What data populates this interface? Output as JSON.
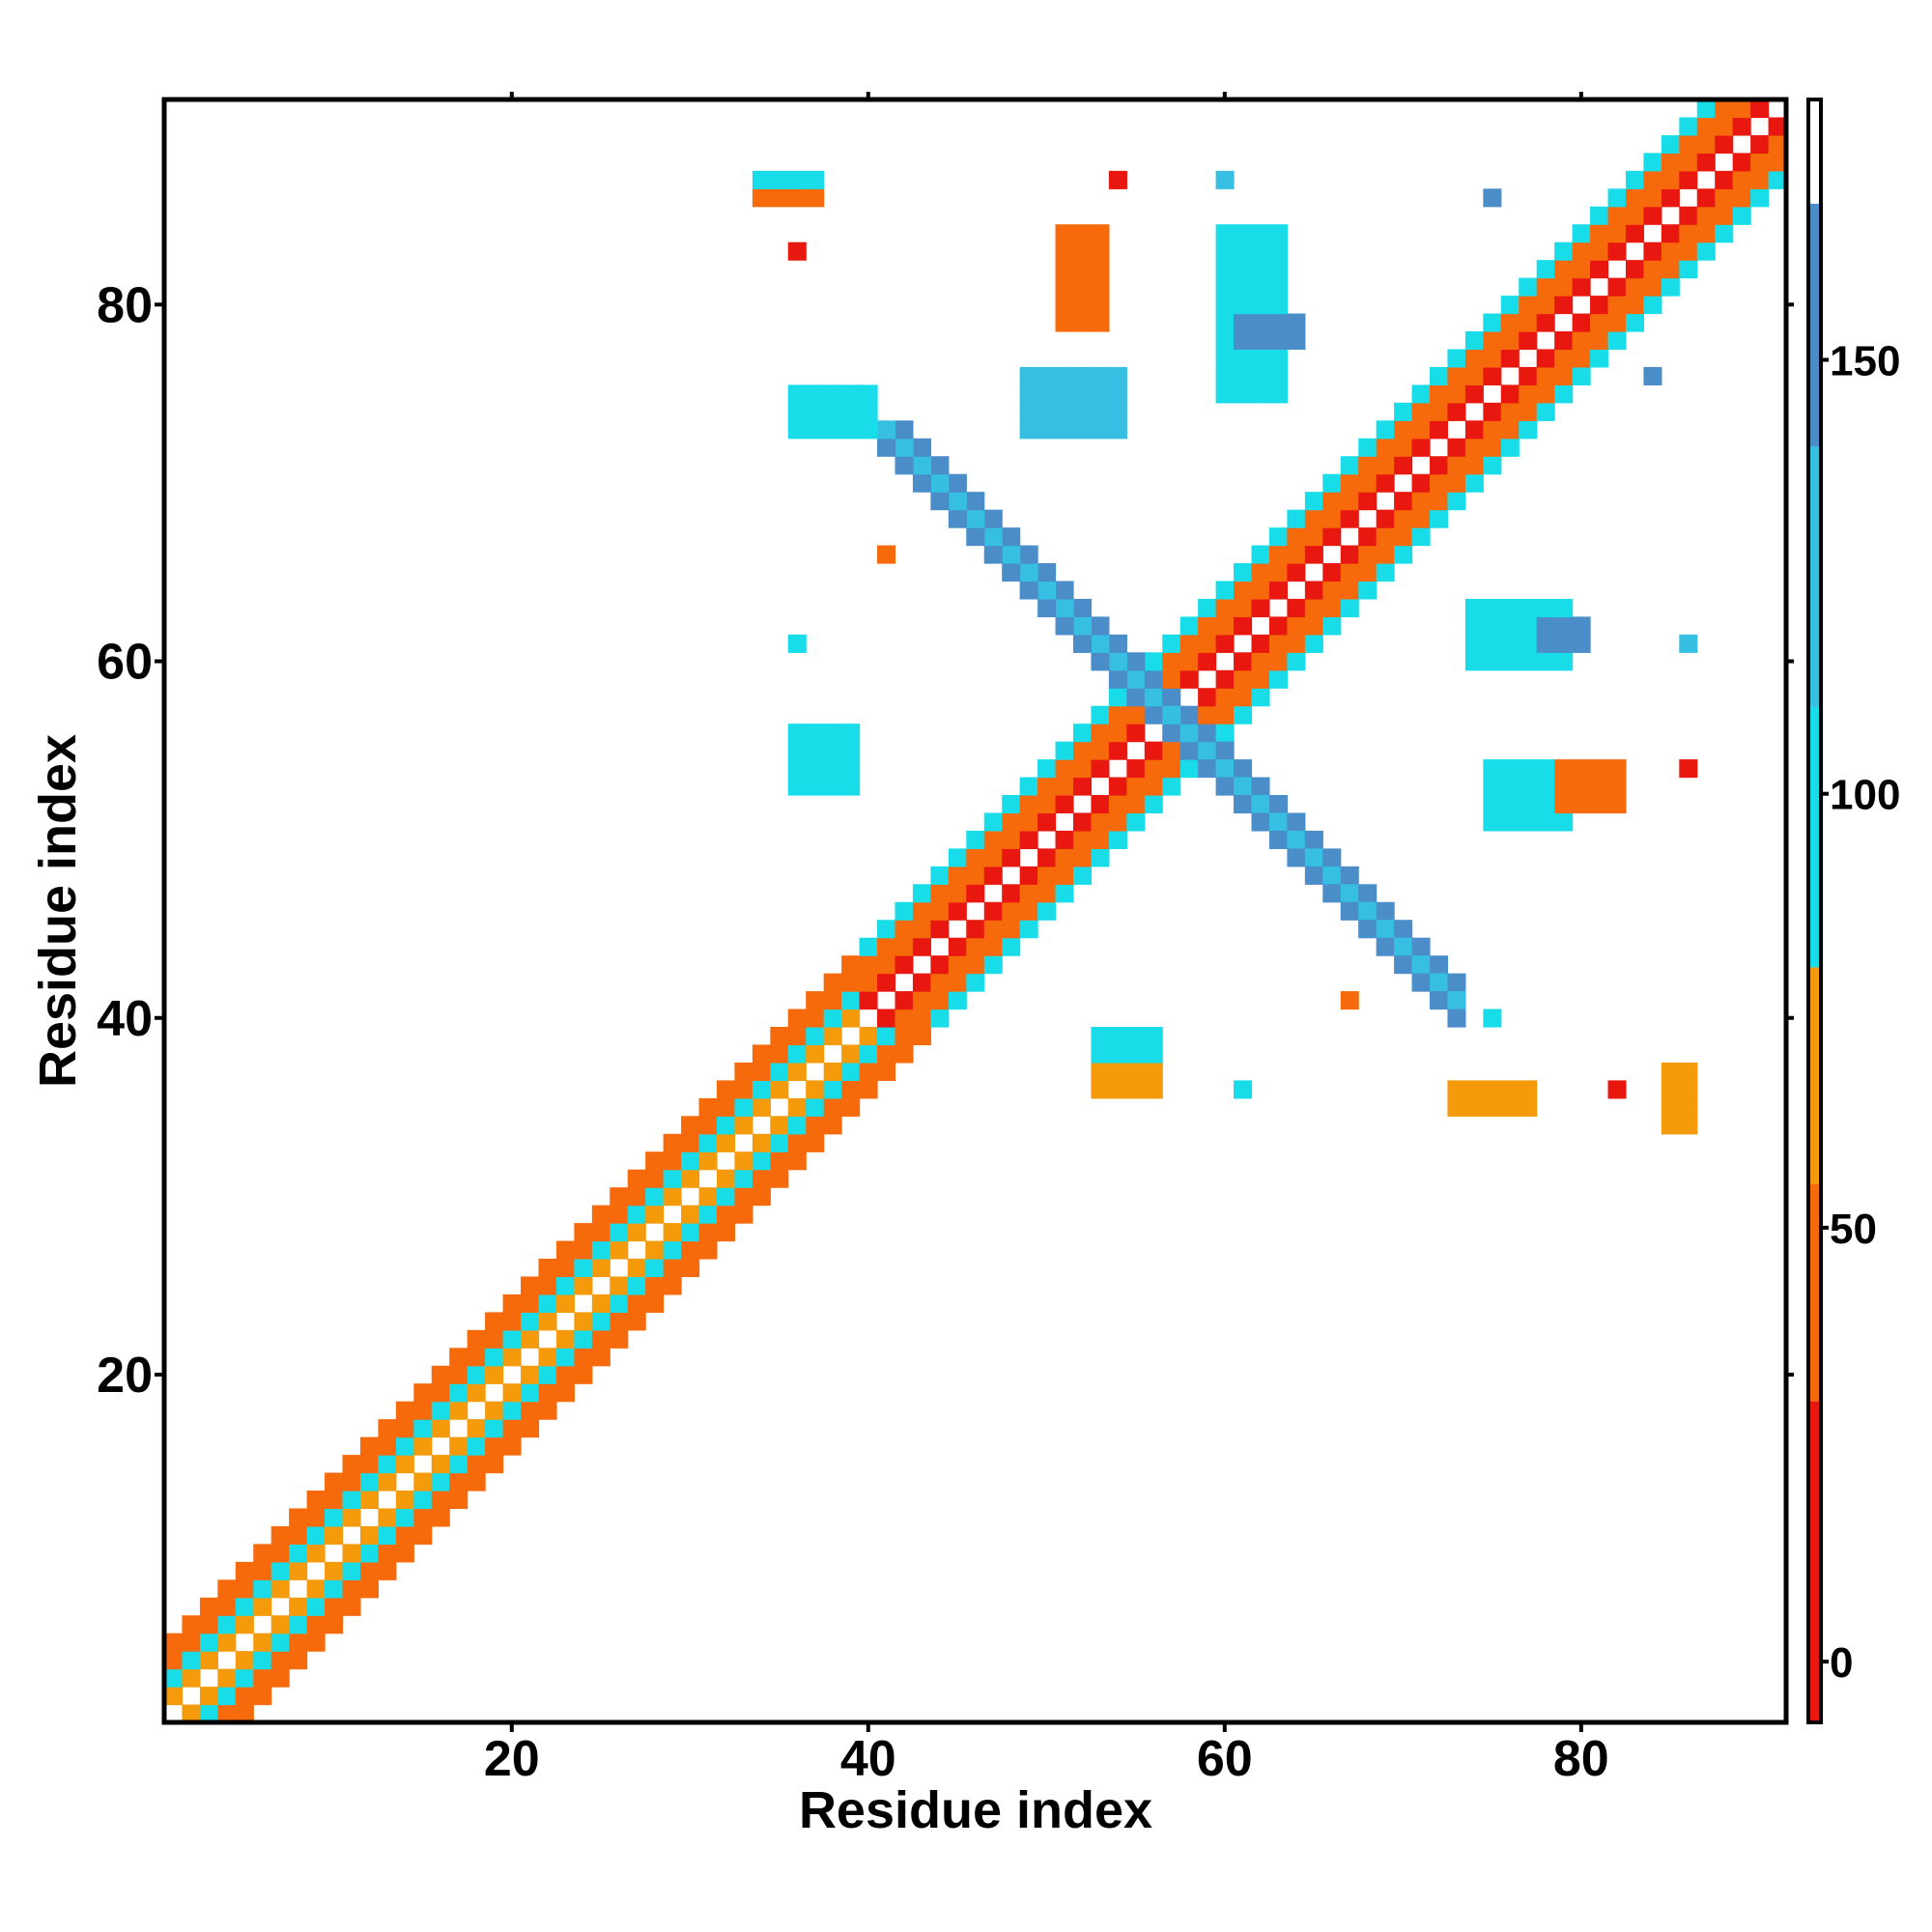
{
  "chart_data": {
    "type": "heatmap",
    "title": "",
    "xlabel": "Residue index",
    "ylabel": "Residue index",
    "xlim": [
      1,
      91
    ],
    "ylim": [
      1,
      91
    ],
    "x_ticks": [
      20,
      40,
      60,
      80
    ],
    "y_ticks": [
      20,
      40,
      60,
      80
    ],
    "grid": false,
    "colorbar": {
      "ticks": [
        0,
        50,
        100,
        150
      ],
      "range": [
        -7,
        180
      ],
      "bands": [
        {
          "from": -7,
          "to": 30,
          "color": "#e8170f"
        },
        {
          "from": 30,
          "to": 55,
          "color": "#f76a0c"
        },
        {
          "from": 55,
          "to": 80,
          "color": "#f59a0a"
        },
        {
          "from": 80,
          "to": 110,
          "color": "#18dde8"
        },
        {
          "from": 110,
          "to": 140,
          "color": "#36bfe2"
        },
        {
          "from": 140,
          "to": 168,
          "color": "#4a8dc9"
        },
        {
          "from": 168,
          "to": 180,
          "color": "#ffffff"
        }
      ]
    },
    "segments": [
      {
        "name": "helix-1-diagonal",
        "from": 1,
        "to": 40,
        "offsets": [
          1,
          2,
          3,
          4
        ],
        "values": [
          60,
          95,
          45,
          40
        ]
      },
      {
        "name": "helix-2-diagonal",
        "from": 40,
        "to": 58,
        "offsets": [
          1,
          2,
          3,
          4
        ],
        "values": [
          20,
          45,
          45,
          95
        ]
      },
      {
        "name": "helix-3-diagonal",
        "from": 59,
        "to": 90,
        "offsets": [
          1,
          2,
          3,
          4
        ],
        "values": [
          25,
          45,
          45,
          95
        ]
      },
      {
        "name": "anti-diagonal",
        "sum": 115,
        "from": 57,
        "to": 73,
        "offsets": [
          0,
          1,
          2
        ],
        "values": [
          150,
          130,
          145
        ]
      }
    ],
    "patches": [
      {
        "x": [
          49,
          54
        ],
        "y": [
          73,
          76
        ],
        "value": 110
      },
      {
        "x": [
          51,
          53
        ],
        "y": [
          79,
          84
        ],
        "value": 45
      },
      {
        "x": [
          60,
          63
        ],
        "y": [
          75,
          84
        ],
        "value": 100
      },
      {
        "x": [
          61,
          64
        ],
        "y": [
          78,
          79
        ],
        "value": 145
      },
      {
        "x": [
          75,
          79
        ],
        "y": [
          51,
          54
        ],
        "value": 105
      },
      {
        "x": [
          79,
          82
        ],
        "y": [
          52,
          54
        ],
        "value": 45
      },
      {
        "x": [
          36,
          39
        ],
        "y": [
          53,
          56
        ],
        "value": 80
      },
      {
        "x": [
          74,
          79
        ],
        "y": [
          60,
          63
        ],
        "value": 105
      },
      {
        "x": [
          78,
          80
        ],
        "y": [
          61,
          62
        ],
        "value": 145
      },
      {
        "x": [
          53,
          56
        ],
        "y": [
          36,
          39
        ],
        "value": 55
      },
      {
        "x": [
          53,
          56
        ],
        "y": [
          38,
          39
        ],
        "value": 100
      },
      {
        "x": [
          34,
          37
        ],
        "y": [
          86,
          87
        ],
        "value": 45
      },
      {
        "x": [
          34,
          37
        ],
        "y": [
          87,
          87
        ],
        "value": 100
      },
      {
        "x": [
          36,
          40
        ],
        "y": [
          73,
          75
        ],
        "value": 100
      },
      {
        "x": [
          85,
          86
        ],
        "y": [
          34,
          37
        ],
        "value": 55
      },
      {
        "x": [
          73,
          77
        ],
        "y": [
          35,
          36
        ],
        "value": 55
      }
    ],
    "points": [
      {
        "x": 36,
        "y": 83,
        "value": 10
      },
      {
        "x": 54,
        "y": 87,
        "value": 10
      },
      {
        "x": 60,
        "y": 87,
        "value": 130
      },
      {
        "x": 36,
        "y": 61,
        "value": 100
      },
      {
        "x": 61,
        "y": 36,
        "value": 100
      },
      {
        "x": 82,
        "y": 36,
        "value": 10
      },
      {
        "x": 86,
        "y": 54,
        "value": 10
      },
      {
        "x": 86,
        "y": 61,
        "value": 130
      },
      {
        "x": 84,
        "y": 76,
        "value": 150
      },
      {
        "x": 41,
        "y": 66,
        "value": 45
      },
      {
        "x": 67,
        "y": 41,
        "value": 45
      },
      {
        "x": 75,
        "y": 40,
        "value": 100
      },
      {
        "x": 75,
        "y": 86,
        "value": 150
      }
    ]
  }
}
